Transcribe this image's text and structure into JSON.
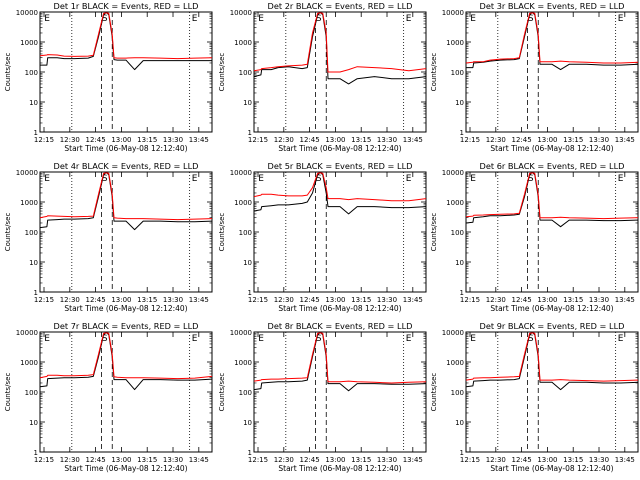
{
  "figure": {
    "xlabel": "Start Time (06-May-08 12:12:40)",
    "ylabel": "Counts/sec",
    "ytick_labels": [
      "1",
      "10",
      "100",
      "1000",
      "10000"
    ],
    "xtick_labels": [
      "12:15",
      "12:30",
      "12:45",
      "13:00",
      "13:15",
      "13:30",
      "13:45"
    ],
    "series_colors": {
      "events": "#000000",
      "lld": "#ff0000"
    },
    "marker_labels": {
      "left": "E",
      "mid": "S",
      "right": "E"
    }
  },
  "chart_data": [
    {
      "type": "line",
      "title": "Det 1r  BLACK = Events, RED = LLD",
      "xlabel": "Start Time (06-May-08 12:12:40)",
      "ylabel": "Counts/sec",
      "yscale": "log",
      "ylim": [
        1,
        10000
      ],
      "x_minutes": [
        0,
        4,
        4.5,
        10,
        14,
        20,
        28,
        31,
        34,
        37,
        38,
        39,
        40,
        42,
        43,
        45,
        50,
        55,
        60,
        70,
        80,
        90,
        100
      ],
      "series": [
        {
          "key": "events",
          "values": [
            170,
            170,
            300,
            300,
            280,
            280,
            290,
            330,
            1500,
            8000,
            10000,
            10000,
            8000,
            1500,
            260,
            250,
            250,
            120,
            240,
            240,
            240,
            240,
            240
          ]
        },
        {
          "key": "lld",
          "values": [
            350,
            370,
            380,
            370,
            340,
            330,
            340,
            360,
            1800,
            9000,
            12000,
            12000,
            9000,
            1800,
            300,
            290,
            290,
            300,
            300,
            290,
            280,
            290,
            300
          ]
        }
      ]
    },
    {
      "type": "line",
      "title": "Det 2r  BLACK = Events, RED = LLD",
      "xlabel": "Start Time (06-May-08 12:12:40)",
      "ylabel": "Counts/sec",
      "yscale": "log",
      "ylim": [
        1,
        10000
      ],
      "x_minutes": [
        0,
        4,
        4.5,
        10,
        14,
        20,
        28,
        31,
        34,
        37,
        38,
        39,
        40,
        42,
        43,
        45,
        50,
        55,
        60,
        70,
        80,
        90,
        100
      ],
      "series": [
        {
          "key": "events",
          "values": [
            70,
            80,
            120,
            120,
            140,
            150,
            130,
            140,
            1500,
            8000,
            10000,
            10000,
            8000,
            1500,
            60,
            60,
            60,
            40,
            60,
            70,
            60,
            60,
            70
          ]
        },
        {
          "key": "lld",
          "values": [
            110,
            120,
            130,
            140,
            150,
            160,
            170,
            180,
            2000,
            9000,
            12000,
            12000,
            9000,
            2000,
            100,
            100,
            100,
            120,
            150,
            140,
            130,
            110,
            130
          ]
        }
      ]
    },
    {
      "type": "line",
      "title": "Det 3r  BLACK = Events, RED = LLD",
      "xlabel": "Start Time (06-May-08 12:12:40)",
      "ylabel": "Counts/sec",
      "yscale": "log",
      "ylim": [
        1,
        10000
      ],
      "x_minutes": [
        0,
        4,
        4.5,
        10,
        14,
        20,
        28,
        31,
        34,
        37,
        38,
        39,
        40,
        42,
        43,
        45,
        50,
        55,
        60,
        70,
        80,
        90,
        100
      ],
      "series": [
        {
          "key": "events",
          "values": [
            140,
            140,
            200,
            210,
            230,
            250,
            260,
            280,
            1500,
            8000,
            10000,
            10000,
            8000,
            1500,
            180,
            180,
            180,
            120,
            180,
            180,
            170,
            170,
            180
          ]
        },
        {
          "key": "lld",
          "values": [
            200,
            210,
            220,
            220,
            250,
            270,
            280,
            300,
            1800,
            9000,
            12000,
            12000,
            9000,
            1800,
            220,
            220,
            220,
            230,
            220,
            210,
            200,
            200,
            210
          ]
        }
      ]
    },
    {
      "type": "line",
      "title": "Det 4r  BLACK = Events, RED = LLD",
      "xlabel": "Start Time (06-May-08 12:12:40)",
      "ylabel": "Counts/sec",
      "yscale": "log",
      "ylim": [
        1,
        10000
      ],
      "x_minutes": [
        0,
        4,
        4.5,
        10,
        14,
        20,
        28,
        31,
        34,
        37,
        38,
        39,
        40,
        42,
        43,
        45,
        50,
        55,
        60,
        70,
        80,
        90,
        100
      ],
      "series": [
        {
          "key": "events",
          "values": [
            140,
            150,
            250,
            260,
            270,
            270,
            280,
            300,
            1500,
            8000,
            10000,
            10000,
            8000,
            1500,
            230,
            230,
            230,
            120,
            230,
            230,
            220,
            220,
            230
          ]
        },
        {
          "key": "lld",
          "values": [
            300,
            330,
            350,
            340,
            330,
            320,
            330,
            340,
            1800,
            9000,
            12000,
            12000,
            9000,
            1800,
            300,
            290,
            280,
            280,
            280,
            270,
            260,
            270,
            280
          ]
        }
      ]
    },
    {
      "type": "line",
      "title": "Det 5r  BLACK = Events, RED = LLD",
      "xlabel": "Start Time (06-May-08 12:12:40)",
      "ylabel": "Counts/sec",
      "yscale": "log",
      "ylim": [
        1,
        10000
      ],
      "x_minutes": [
        0,
        4,
        4.5,
        10,
        14,
        20,
        28,
        31,
        34,
        37,
        38,
        39,
        40,
        42,
        43,
        45,
        50,
        55,
        60,
        70,
        80,
        90,
        100
      ],
      "series": [
        {
          "key": "events",
          "values": [
            500,
            550,
            700,
            750,
            800,
            800,
            900,
            1000,
            2000,
            8000,
            10000,
            10000,
            8000,
            2000,
            700,
            700,
            700,
            400,
            700,
            700,
            650,
            650,
            700
          ]
        },
        {
          "key": "lld",
          "values": [
            1500,
            1700,
            1800,
            1800,
            1700,
            1600,
            1600,
            1700,
            3000,
            9000,
            12000,
            12000,
            9000,
            3000,
            1300,
            1300,
            1300,
            1200,
            1300,
            1200,
            1100,
            1100,
            1300
          ]
        }
      ]
    },
    {
      "type": "line",
      "title": "Det 6r  BLACK = Events, RED = LLD",
      "xlabel": "Start Time (06-May-08 12:12:40)",
      "ylabel": "Counts/sec",
      "yscale": "log",
      "ylim": [
        1,
        10000
      ],
      "x_minutes": [
        0,
        4,
        4.5,
        10,
        14,
        20,
        28,
        31,
        34,
        37,
        38,
        39,
        40,
        42,
        43,
        45,
        50,
        55,
        60,
        70,
        80,
        90,
        100
      ],
      "series": [
        {
          "key": "events",
          "values": [
            200,
            210,
            300,
            320,
            350,
            350,
            370,
            390,
            1500,
            8000,
            10000,
            10000,
            8000,
            1500,
            250,
            250,
            250,
            150,
            250,
            250,
            240,
            240,
            250
          ]
        },
        {
          "key": "lld",
          "values": [
            320,
            340,
            360,
            370,
            380,
            390,
            400,
            420,
            1800,
            9000,
            12000,
            12000,
            9000,
            1800,
            300,
            300,
            300,
            310,
            300,
            290,
            280,
            290,
            300
          ]
        }
      ]
    },
    {
      "type": "line",
      "title": "Det 7r  BLACK = Events, RED = LLD",
      "xlabel": "Start Time (06-May-08 12:12:40)",
      "ylabel": "Counts/sec",
      "yscale": "log",
      "ylim": [
        1,
        10000
      ],
      "x_minutes": [
        0,
        4,
        4.5,
        10,
        14,
        20,
        28,
        31,
        34,
        37,
        38,
        39,
        40,
        42,
        43,
        45,
        50,
        55,
        60,
        70,
        80,
        90,
        100
      ],
      "series": [
        {
          "key": "events",
          "values": [
            150,
            160,
            280,
            290,
            300,
            300,
            310,
            330,
            1500,
            8000,
            10000,
            10000,
            8000,
            1500,
            260,
            260,
            260,
            120,
            260,
            260,
            250,
            250,
            270
          ]
        },
        {
          "key": "lld",
          "values": [
            300,
            330,
            360,
            360,
            350,
            350,
            360,
            380,
            1800,
            9000,
            12000,
            12000,
            9000,
            1800,
            320,
            310,
            300,
            300,
            300,
            290,
            280,
            290,
            330
          ]
        }
      ]
    },
    {
      "type": "line",
      "title": "Det 8r  BLACK = Events, RED = LLD",
      "xlabel": "Start Time (06-May-08 12:12:40)",
      "ylabel": "Counts/sec",
      "yscale": "log",
      "ylim": [
        1,
        10000
      ],
      "x_minutes": [
        0,
        4,
        4.5,
        10,
        14,
        20,
        28,
        31,
        34,
        37,
        38,
        39,
        40,
        42,
        43,
        45,
        50,
        55,
        60,
        70,
        80,
        90,
        100
      ],
      "series": [
        {
          "key": "events",
          "values": [
            120,
            130,
            200,
            210,
            220,
            220,
            230,
            250,
            1500,
            8000,
            10000,
            10000,
            8000,
            1500,
            190,
            190,
            190,
            110,
            190,
            190,
            180,
            180,
            190
          ]
        },
        {
          "key": "lld",
          "values": [
            230,
            250,
            260,
            270,
            270,
            280,
            290,
            300,
            1800,
            9000,
            12000,
            12000,
            9000,
            1800,
            220,
            220,
            220,
            230,
            220,
            210,
            200,
            210,
            220
          ]
        }
      ]
    },
    {
      "type": "line",
      "title": "Det 9r  BLACK = Events, RED = LLD",
      "xlabel": "Start Time (06-May-08 12:12:40)",
      "ylabel": "Counts/sec",
      "yscale": "log",
      "ylim": [
        1,
        10000
      ],
      "x_minutes": [
        0,
        4,
        4.5,
        10,
        14,
        20,
        28,
        31,
        34,
        37,
        38,
        39,
        40,
        42,
        43,
        45,
        50,
        55,
        60,
        70,
        80,
        90,
        100
      ],
      "series": [
        {
          "key": "events",
          "values": [
            150,
            160,
            230,
            240,
            250,
            250,
            260,
            280,
            1500,
            8000,
            10000,
            10000,
            8000,
            1500,
            210,
            210,
            210,
            120,
            210,
            210,
            200,
            200,
            210
          ]
        },
        {
          "key": "lld",
          "values": [
            250,
            270,
            290,
            300,
            300,
            310,
            320,
            330,
            1800,
            9000,
            12000,
            12000,
            9000,
            1800,
            250,
            250,
            250,
            260,
            250,
            240,
            230,
            240,
            250
          ]
        }
      ]
    }
  ]
}
